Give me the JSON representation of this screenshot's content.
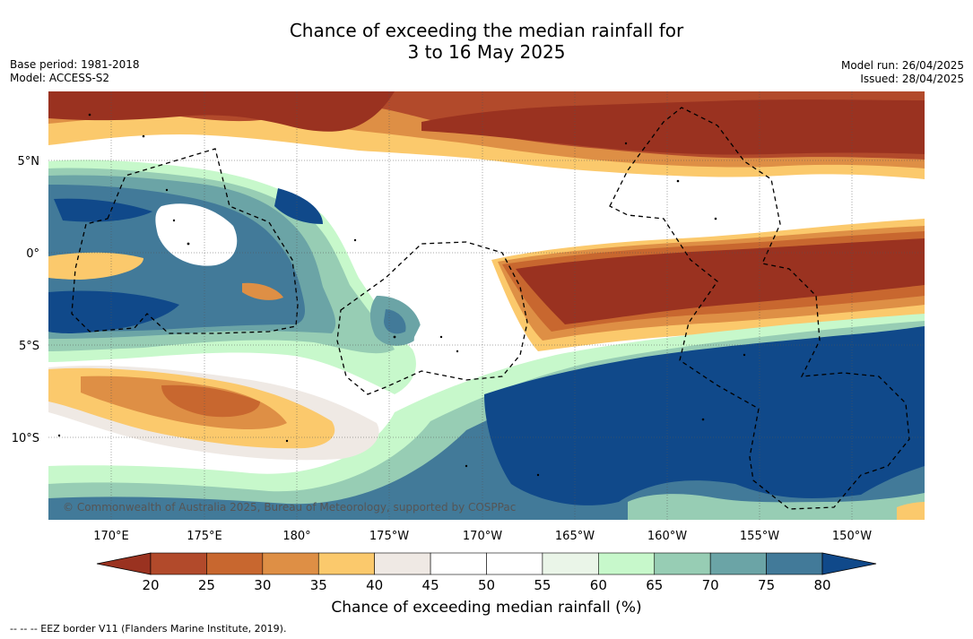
{
  "title_line1": "Chance of exceeding the median rainfall for",
  "title_line2": "3 to 16 May 2025",
  "base_period": "Base period: 1981-2018",
  "model": "Model: ACCESS-S2",
  "model_run": "Model run: 26/04/2025",
  "issued": "Issued: 28/04/2025",
  "copyright": "© Commonwealth of Australia 2025, Bureau of Meteorology, supported by COSPPac",
  "lon_labels": [
    "170°E",
    "175°E",
    "180°",
    "175°W",
    "170°W",
    "165°W",
    "160°W",
    "155°W",
    "150°W"
  ],
  "lat_labels": [
    "5°N",
    "0°",
    "5°S",
    "10°S"
  ],
  "colorbar": {
    "ticks": [
      "20",
      "25",
      "30",
      "35",
      "40",
      "45",
      "50",
      "55",
      "60",
      "65",
      "70",
      "75",
      "80"
    ],
    "colors": [
      "#9a3220",
      "#b24a2b",
      "#c8672f",
      "#de8f45",
      "#fbc96c",
      "#efe9e4",
      "#ffffff",
      "#ffffff",
      "#eaf5e8",
      "#c7f8cb",
      "#97cdb4",
      "#6ba4a6",
      "#427a99",
      "#10498a"
    ],
    "label": "Chance of exceeding median rainfall (%)"
  },
  "footer": "--  --  -- EEZ border V11 (Flanders Marine Institute, 2019)."
}
